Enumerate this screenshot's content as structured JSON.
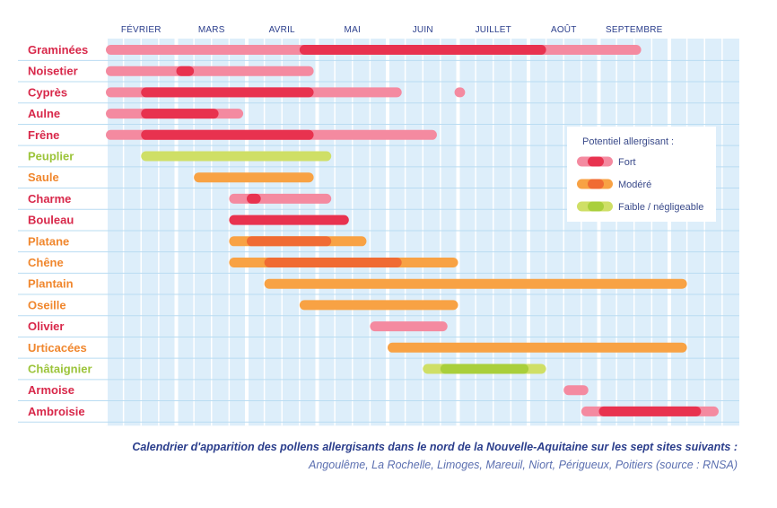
{
  "chart_data": {
    "type": "timeline",
    "months": [
      "FÉVRIER",
      "MARS",
      "AVRIL",
      "MAI",
      "JUIN",
      "JUILLET",
      "AOÛT",
      "SEPTEMBRE"
    ],
    "levels": {
      "fort": {
        "label": "Fort",
        "light": "#f48aa0",
        "dark": "#e8324f"
      },
      "modere": {
        "label": "Modéré",
        "light": "#f8a244",
        "dark": "#f06b33"
      },
      "faible": {
        "label": "Faible / négligeable",
        "light": "#cfdf66",
        "dark": "#a9cf3b"
      }
    },
    "legend_title": "Potentiel allergisant :",
    "legend_position": "top-right",
    "plants": [
      {
        "name": "Graminées",
        "level": "fort",
        "segments": [
          {
            "start": 1.0,
            "end": 8.6,
            "tone": "light"
          },
          {
            "start": 3.75,
            "end": 7.25,
            "tone": "dark"
          }
        ]
      },
      {
        "name": "Noisetier",
        "level": "fort",
        "segments": [
          {
            "start": 1.0,
            "end": 3.95,
            "tone": "light"
          },
          {
            "start": 2.0,
            "end": 2.25,
            "tone": "dark"
          }
        ]
      },
      {
        "name": "Cyprès",
        "level": "fort",
        "segments": [
          {
            "start": 1.0,
            "end": 5.2,
            "tone": "light"
          },
          {
            "start": 1.5,
            "end": 3.95,
            "tone": "dark"
          },
          {
            "start": 5.95,
            "end": 6.1,
            "tone": "light"
          }
        ]
      },
      {
        "name": "Aulne",
        "level": "fort",
        "segments": [
          {
            "start": 1.0,
            "end": 2.95,
            "tone": "light"
          },
          {
            "start": 1.5,
            "end": 2.6,
            "tone": "dark"
          }
        ]
      },
      {
        "name": "Frêne",
        "level": "fort",
        "segments": [
          {
            "start": 1.0,
            "end": 5.7,
            "tone": "light"
          },
          {
            "start": 1.5,
            "end": 3.95,
            "tone": "dark"
          }
        ]
      },
      {
        "name": "Peuplier",
        "level": "faible",
        "segments": [
          {
            "start": 1.5,
            "end": 4.2,
            "tone": "light"
          }
        ]
      },
      {
        "name": "Saule",
        "level": "modere",
        "segments": [
          {
            "start": 2.25,
            "end": 3.95,
            "tone": "light"
          }
        ]
      },
      {
        "name": "Charme",
        "level": "fort",
        "segments": [
          {
            "start": 2.75,
            "end": 4.2,
            "tone": "light"
          },
          {
            "start": 3.0,
            "end": 3.2,
            "tone": "dark"
          }
        ]
      },
      {
        "name": "Bouleau",
        "level": "fort",
        "segments": [
          {
            "start": 2.75,
            "end": 4.45,
            "tone": "dark"
          }
        ]
      },
      {
        "name": "Platane",
        "level": "modere",
        "segments": [
          {
            "start": 2.75,
            "end": 4.7,
            "tone": "light"
          },
          {
            "start": 3.0,
            "end": 4.2,
            "tone": "dark"
          }
        ]
      },
      {
        "name": "Chêne",
        "level": "modere",
        "segments": [
          {
            "start": 2.75,
            "end": 6.0,
            "tone": "light"
          },
          {
            "start": 3.25,
            "end": 5.2,
            "tone": "dark"
          }
        ]
      },
      {
        "name": "Plantain",
        "level": "modere",
        "segments": [
          {
            "start": 3.25,
            "end": 9.25,
            "tone": "light"
          }
        ]
      },
      {
        "name": "Oseille",
        "level": "modere",
        "segments": [
          {
            "start": 3.75,
            "end": 6.0,
            "tone": "light"
          }
        ]
      },
      {
        "name": "Olivier",
        "level": "fort",
        "segments": [
          {
            "start": 4.75,
            "end": 5.85,
            "tone": "light"
          }
        ]
      },
      {
        "name": "Urticacées",
        "level": "modere",
        "segments": [
          {
            "start": 5.0,
            "end": 9.25,
            "tone": "light"
          }
        ]
      },
      {
        "name": "Châtaignier",
        "level": "faible",
        "segments": [
          {
            "start": 5.5,
            "end": 7.25,
            "tone": "light"
          },
          {
            "start": 5.75,
            "end": 7.0,
            "tone": "dark"
          }
        ]
      },
      {
        "name": "Armoise",
        "level": "fort",
        "segments": [
          {
            "start": 7.5,
            "end": 7.85,
            "tone": "light"
          }
        ]
      },
      {
        "name": "Ambroisie",
        "level": "fort",
        "segments": [
          {
            "start": 7.75,
            "end": 9.7,
            "tone": "light"
          },
          {
            "start": 8.0,
            "end": 9.45,
            "tone": "dark"
          }
        ]
      }
    ]
  },
  "caption": {
    "line1": "Calendrier d'apparition des pollens allergisants dans le nord de la Nouvelle-Aquitaine sur les sept sites suivants :",
    "line2": "Angoulême, La Rochelle, Limoges, Mareuil, Niort, Périgueux, Poitiers (source : RNSA)"
  }
}
